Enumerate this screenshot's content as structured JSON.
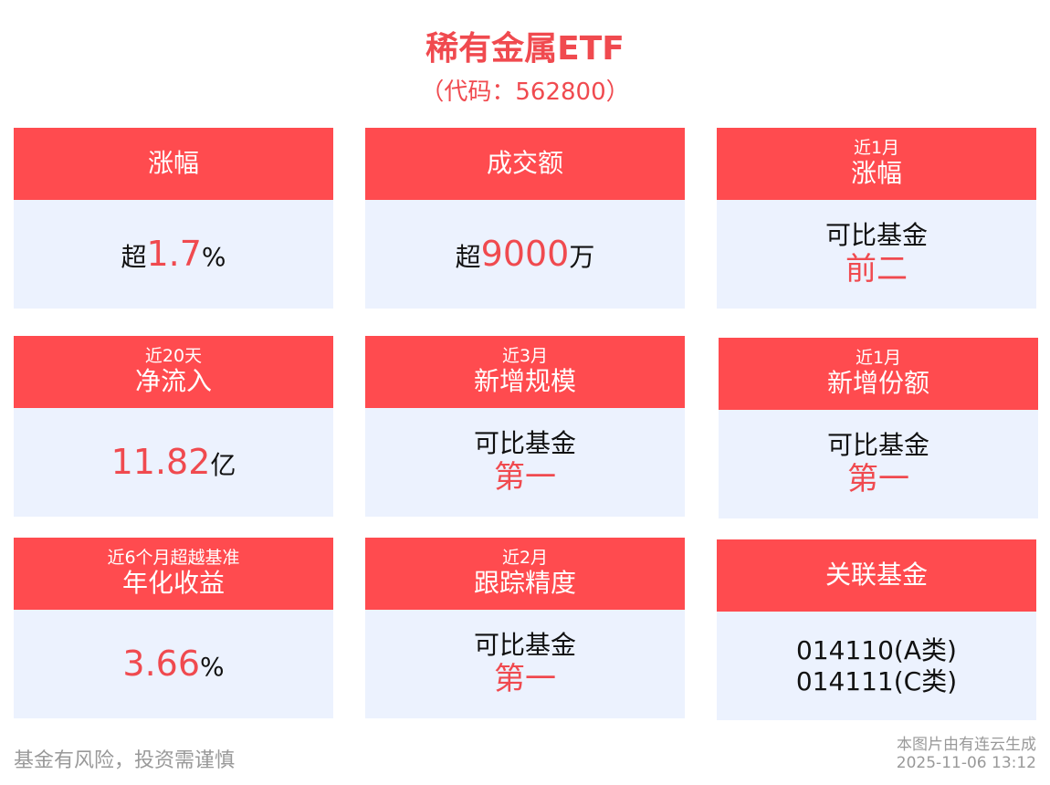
{
  "header": {
    "title": "稀有金属ETF",
    "code": "（代码：562800）"
  },
  "cards": [
    {
      "sub": "",
      "label": "涨幅",
      "prefix": "超",
      "value": "1.7",
      "unit": "%"
    },
    {
      "sub": "",
      "label": "成交额",
      "prefix": "超",
      "value": "9000",
      "unit": "万"
    },
    {
      "sub": "近1月",
      "label": "涨幅",
      "text": "可比基金",
      "rank": "前二"
    },
    {
      "sub": "近20天",
      "label": "净流入",
      "prefix": "",
      "value": "11.82",
      "unit": "亿"
    },
    {
      "sub": "近3月",
      "label": "新增规模",
      "text": "可比基金",
      "rank": "第一"
    },
    {
      "sub": "近1月",
      "label": "新增份额",
      "text": "可比基金",
      "rank": "第一"
    },
    {
      "sub": "近6个月超越基准",
      "label": "年化收益",
      "prefix": "",
      "value": "3.66",
      "unit": "%"
    },
    {
      "sub": "近2月",
      "label": "跟踪精度",
      "text": "可比基金",
      "rank": "第一"
    },
    {
      "sub": "",
      "label": "关联基金",
      "line1": "014110(A类)",
      "line2": "014111(C类)"
    }
  ],
  "footer": {
    "disclaimer": "基金有风险，投资需谨慎",
    "source": "本图片由有连云生成",
    "timestamp": "2025-11-06 13:12"
  },
  "colors": {
    "accent": "#ff4b4f",
    "card_body": "#ecf2fe"
  }
}
